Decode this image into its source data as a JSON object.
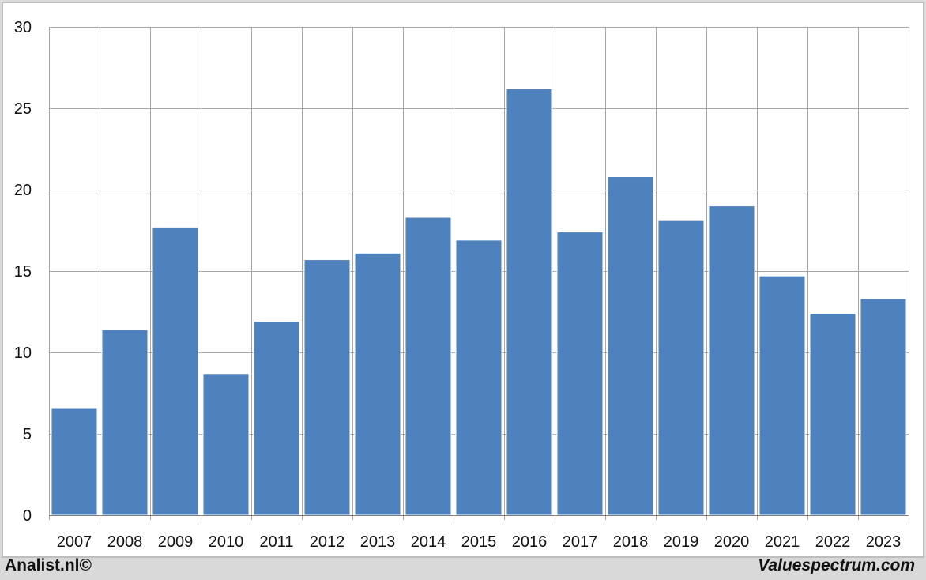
{
  "chart_data": {
    "type": "bar",
    "categories": [
      "2007",
      "2008",
      "2009",
      "2010",
      "2011",
      "2012",
      "2013",
      "2014",
      "2015",
      "2016",
      "2017",
      "2018",
      "2019",
      "2020",
      "2021",
      "2022",
      "2023"
    ],
    "values": [
      6.6,
      11.4,
      17.7,
      8.7,
      11.9,
      15.7,
      16.1,
      18.3,
      16.9,
      26.2,
      17.4,
      20.8,
      18.1,
      19.0,
      14.7,
      12.4,
      13.3
    ],
    "title": "",
    "xlabel": "",
    "ylabel": "",
    "ylim": [
      0,
      30
    ],
    "yticks": [
      0,
      5,
      10,
      15,
      20,
      25,
      30
    ],
    "grid": true,
    "legend": "none",
    "bar_color": "#4f81bd",
    "grid_color": "#a6a6a6"
  },
  "footer": {
    "left": "Analist.nl©",
    "right": "Valuespectrum.com"
  }
}
